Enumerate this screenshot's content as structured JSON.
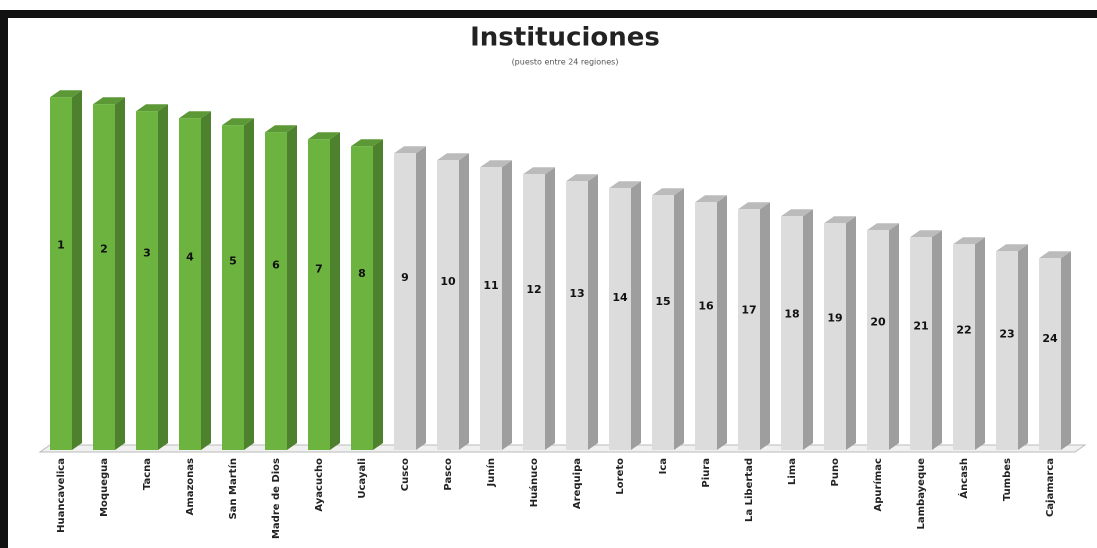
{
  "chart_data": {
    "type": "bar3d",
    "title": "Instituciones",
    "subtitle": "(puesto entre 24 regiones)",
    "categories": [
      "Huancavelica",
      "Moquegua",
      "Tacna",
      "Amazonas",
      "San Martín",
      "Madre de Dios",
      "Ayacucho",
      "Ucayali",
      "Cusco",
      "Pasco",
      "Junín",
      "Huánuco",
      "Arequipa",
      "Loreto",
      "Ica",
      "Piura",
      "La Libertad",
      "Lima",
      "Puno",
      "Apurímac",
      "Lambayeque",
      "Áncash",
      "Tumbes",
      "Cajamarca"
    ],
    "values": [
      1,
      2,
      3,
      4,
      5,
      6,
      7,
      8,
      9,
      10,
      11,
      12,
      13,
      14,
      15,
      16,
      17,
      18,
      19,
      20,
      21,
      22,
      23,
      24
    ],
    "colors": [
      "#6cb33f",
      "#6cb33f",
      "#6cb33f",
      "#6cb33f",
      "#6cb33f",
      "#6cb33f",
      "#6cb33f",
      "#6cb33f",
      "#dcdcdc",
      "#dcdcdc",
      "#dcdcdc",
      "#dcdcdc",
      "#dcdcdc",
      "#dcdcdc",
      "#dcdcdc",
      "#dcdcdc",
      "#dcdcdc",
      "#dcdcdc",
      "#dcdcdc",
      "#dcdcdc",
      "#dcdcdc",
      "#dcdcdc",
      "#dcdcdc",
      "#dcdcdc"
    ]
  }
}
